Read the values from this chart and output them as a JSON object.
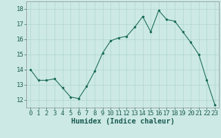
{
  "x": [
    0,
    1,
    2,
    3,
    4,
    5,
    6,
    7,
    8,
    9,
    10,
    11,
    12,
    13,
    14,
    15,
    16,
    17,
    18,
    19,
    20,
    21,
    22,
    23
  ],
  "y": [
    14.0,
    13.3,
    13.3,
    13.4,
    12.8,
    12.2,
    12.1,
    12.9,
    13.9,
    15.1,
    15.9,
    16.1,
    16.2,
    16.8,
    17.5,
    16.5,
    17.9,
    17.3,
    17.2,
    16.5,
    15.8,
    15.0,
    13.3,
    11.7
  ],
  "xlabel": "Humidex (Indice chaleur)",
  "ylim": [
    11.5,
    18.5
  ],
  "xlim": [
    -0.5,
    23.5
  ],
  "yticks": [
    12,
    13,
    14,
    15,
    16,
    17,
    18
  ],
  "xticks": [
    0,
    1,
    2,
    3,
    4,
    5,
    6,
    7,
    8,
    9,
    10,
    11,
    12,
    13,
    14,
    15,
    16,
    17,
    18,
    19,
    20,
    21,
    22,
    23
  ],
  "line_color": "#1a6b5a",
  "marker_color": "#1a6b5a",
  "bg_color": "#cce9e5",
  "grid_color": "#aed4cf",
  "xlabel_fontsize": 7.5,
  "tick_fontsize": 6.5
}
